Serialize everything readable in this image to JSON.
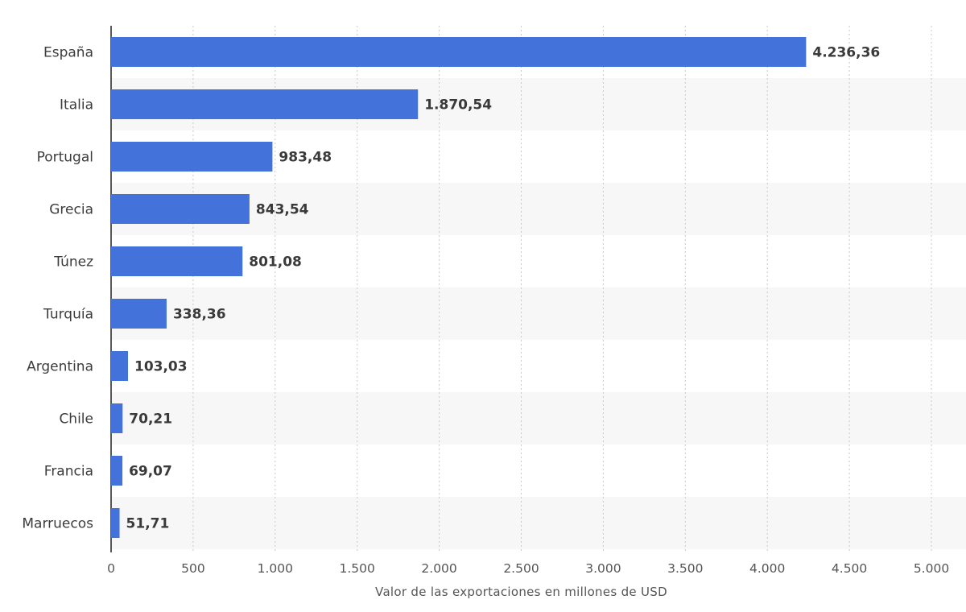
{
  "chart_data": {
    "type": "bar",
    "orientation": "horizontal",
    "categories": [
      "España",
      "Italia",
      "Portugal",
      "Grecia",
      "Túnez",
      "Turquía",
      "Argentina",
      "Chile",
      "Francia",
      "Marruecos"
    ],
    "values": [
      4236.36,
      1870.54,
      983.48,
      843.54,
      801.08,
      338.36,
      103.03,
      70.21,
      69.07,
      51.71
    ],
    "value_labels": [
      "4.236,36",
      "1.870,54",
      "983,48",
      "843,54",
      "801,08",
      "338,36",
      "103,03",
      "70,21",
      "69,07",
      "51,71"
    ],
    "xlabel": "Valor de las exportaciones en millones de USD",
    "ylabel": "",
    "xlim": [
      0,
      5000
    ],
    "xticks": [
      0,
      500,
      1000,
      1500,
      2000,
      2500,
      3000,
      3500,
      4000,
      4500,
      5000
    ],
    "xtick_labels": [
      "0",
      "500",
      "1.000",
      "1.500",
      "2.000",
      "2.500",
      "3.000",
      "3.500",
      "4.000",
      "4.500",
      "5.000"
    ],
    "grid": "vertical dashed",
    "bar_color": "#4472db",
    "stripe_color": "#f7f7f7",
    "legend": "none"
  }
}
